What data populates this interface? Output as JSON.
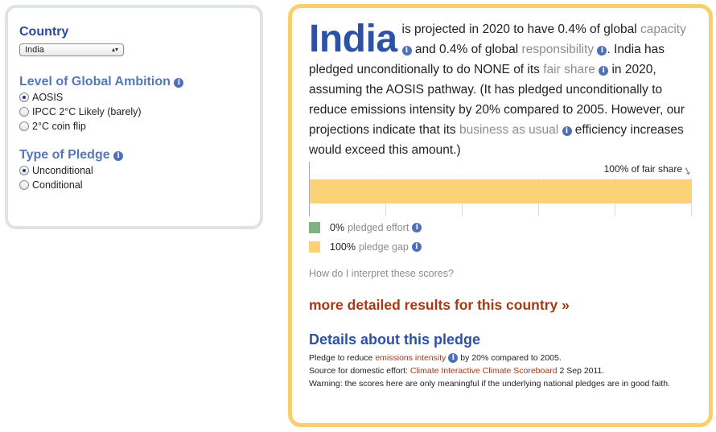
{
  "left": {
    "country_label": "Country",
    "country_value": "India",
    "ambition_label": "Level of Global Ambition",
    "ambition_options": [
      "AOSIS",
      "IPCC 2°C Likely (barely)",
      "2°C coin flip"
    ],
    "ambition_selected": 0,
    "pledge_label": "Type of Pledge",
    "pledge_options": [
      "Unconditional",
      "Conditional"
    ],
    "pledge_selected": 0
  },
  "right": {
    "country": "India",
    "s1": " is projected in 2020 to have 0.4% of global",
    "capacity_link": "capacity",
    "s2": " and 0.4% of global ",
    "responsibility_link": "responsibility",
    "s3": ". India has pledged unconditionally to do NONE of its ",
    "fair_share_link": "fair share",
    "s4": " in 2020, assuming the AOSIS pathway. (It has pledged unconditionally to reduce emissions intensity by 20% compared to 2005. However, our projections indicate that its ",
    "bau_link": "business as usual",
    "s5": " efficiency increases would exceed this amount.)",
    "fair_share_label": "100% of fair share",
    "bar_fill_percent": 100,
    "legend": [
      {
        "value": "0%",
        "label": "pledged effort",
        "color": "#7db37f"
      },
      {
        "value": "100%",
        "label": "pledge gap",
        "color": "#fbd275"
      }
    ],
    "interpret_link": "How do I interpret these scores?",
    "more_link": "more detailed results for this country »",
    "details_title": "Details about this pledge",
    "d1_pre": "Pledge to reduce ",
    "d1_link": "emissions intensity",
    "d1_post": " by 20% compared to 2005.",
    "d2_pre": "Source for domestic effort: ",
    "d2_link": "Climate Interactive Climate Scoreboard",
    "d2_post": " 2 Sep 2011.",
    "d3": "Warning: the scores here are only meaningful if the underlying national pledges are in good faith."
  },
  "icons": {
    "info": "i",
    "select_arrows": "▴▾",
    "arrow": "➘"
  }
}
